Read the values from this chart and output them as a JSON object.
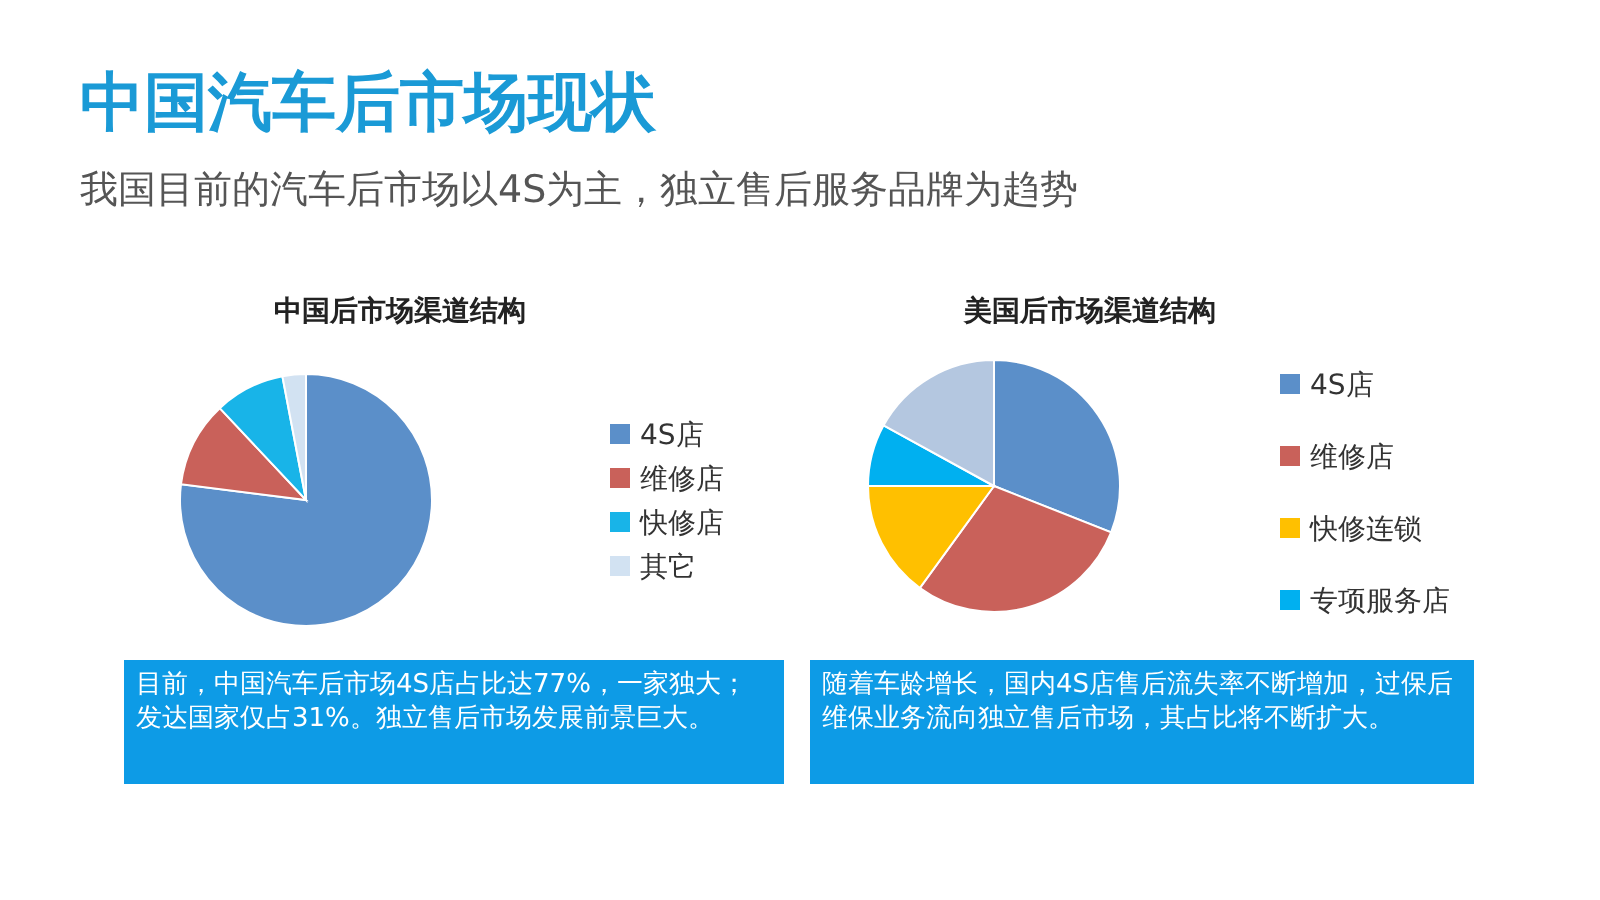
{
  "chart_data": [
    {
      "type": "pie",
      "title": "中国后市场渠道结构",
      "categories": [
        "4S店",
        "维修店",
        "快修店",
        "其它"
      ],
      "values": [
        77,
        11,
        9,
        3
      ],
      "colors": [
        "#5b8fc9",
        "#c9615a",
        "#18b4e8",
        "#d2e2f2"
      ],
      "legend": "right",
      "annotations": [
        "中国汽车后市场现状",
        "我国目前的汽车后市场以4S为主，独立售后服务品牌为趋势",
        "目前，中国汽车后市场4S店占比达77%，一家独大；发达国家仅占31%。独立售后市场发展前景巨大。"
      ]
    },
    {
      "type": "pie",
      "title": "美国后市场渠道结构",
      "categories": [
        "4S店",
        "维修店",
        "快修连锁",
        "专项服务店",
        null
      ],
      "values": [
        31,
        29,
        15,
        8,
        17
      ],
      "colors": [
        "#5b8fc9",
        "#c9615a",
        "#ffc000",
        "#00b0f0",
        "#b4c7e0"
      ],
      "legend": "right",
      "annotations": [
        "随着车龄增长，国内4S店售后流失率不断增加，过保后维保业务流向独立售后市场，其占比将不断扩大。"
      ]
    }
  ]
}
